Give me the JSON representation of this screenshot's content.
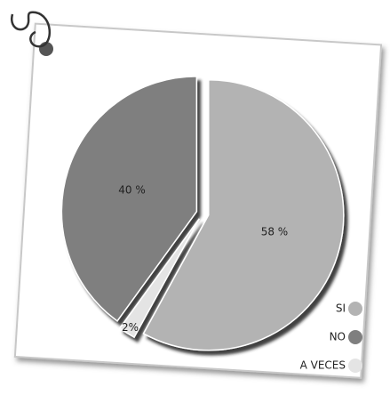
{
  "chart_data": {
    "type": "pie",
    "categories": [
      "SI",
      "A VECES",
      "NO"
    ],
    "values": [
      58,
      2,
      40
    ],
    "value_labels": [
      "58 %",
      "2%",
      "40 %"
    ],
    "colors": [
      "#b3b3b3",
      "#e4e4e4",
      "#7f7f7f"
    ]
  }
}
